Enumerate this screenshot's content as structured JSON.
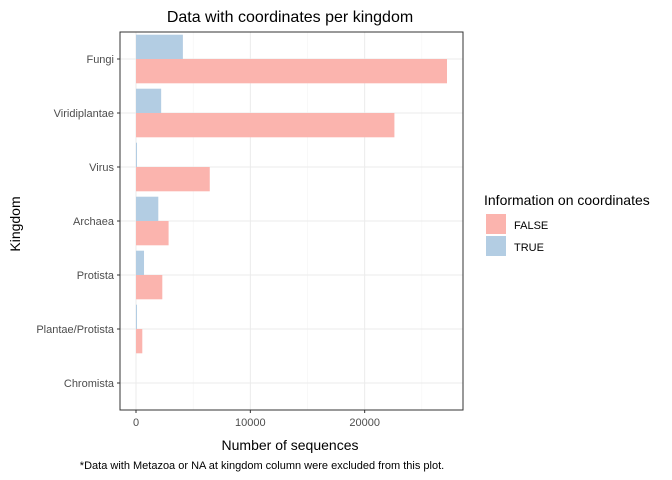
{
  "chart_data": {
    "type": "bar",
    "orientation": "horizontal",
    "title": "Data with coordinates per kingdom",
    "xlabel": "Number of sequences",
    "ylabel": "Kingdom",
    "caption": "*Data with Metazoa or NA at kingdom column were excluded from this plot.",
    "categories": [
      "Fungi",
      "Viridiplantae",
      "Virus",
      "Archaea",
      "Protista",
      "Plantae/Protista",
      "Chromista"
    ],
    "series": [
      {
        "name": "FALSE",
        "color": "#fbb4ae",
        "values": [
          27200,
          22600,
          6450,
          2850,
          2300,
          550,
          0
        ]
      },
      {
        "name": "TRUE",
        "color": "#b3cde3",
        "values": [
          4100,
          2200,
          80,
          1950,
          700,
          60,
          0
        ]
      }
    ],
    "xticks": [
      0,
      10000,
      20000
    ],
    "xtick_labels": [
      "0",
      "10000",
      "20000"
    ],
    "xlim": [
      -1400,
      28600
    ],
    "grid": true,
    "legend": {
      "title": "Information on coordinates",
      "position": "right"
    }
  }
}
